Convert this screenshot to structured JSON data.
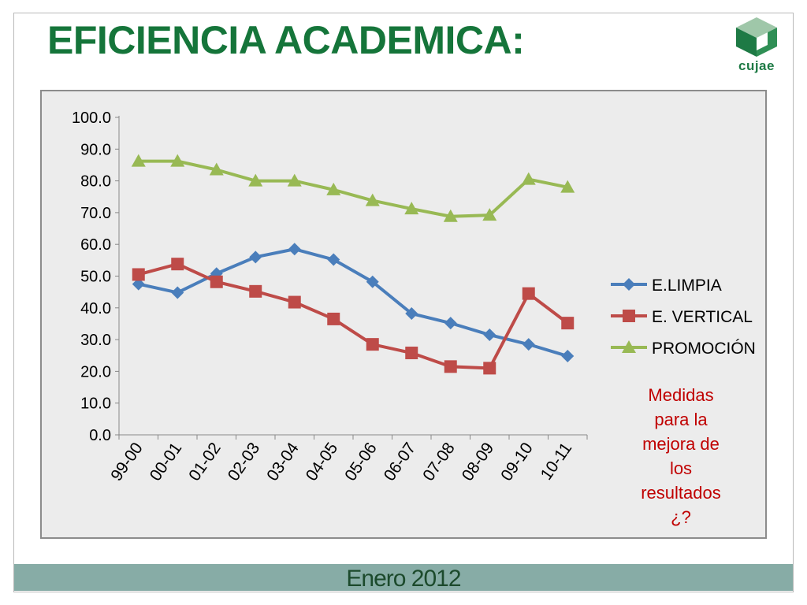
{
  "slide": {
    "title": "EFICIENCIA ACADEMICA:",
    "logo_text": "cujae",
    "note_lines": [
      "Medidas",
      "para la",
      "mejora de",
      "los",
      "resultados",
      "¿?"
    ],
    "footer": "Enero 2012"
  },
  "colors": {
    "title": "#15753a",
    "note": "#c00000",
    "footer_band": "#87aca6",
    "chart_bg": "#ececec"
  },
  "chart_data": {
    "type": "line",
    "title": "",
    "xlabel": "",
    "ylabel": "",
    "ylim": [
      0,
      100
    ],
    "yticks": [
      "100.0",
      "90.0",
      "80.0",
      "70.0",
      "60.0",
      "50.0",
      "40.0",
      "30.0",
      "20.0",
      "10.0",
      "0.0"
    ],
    "legend_position": "right",
    "grid": false,
    "categories": [
      "99-00",
      "00-01",
      "01-02",
      "02-03",
      "03-04",
      "04-05",
      "05-06",
      "06-07",
      "07-08",
      "08-09",
      "09-10",
      "10-11"
    ],
    "series": [
      {
        "name": "E.LIMPIA",
        "color": "#4a7ebb",
        "marker": "diamond",
        "values": [
          47.5,
          44.8,
          50.8,
          56.0,
          58.5,
          55.2,
          48.2,
          38.2,
          35.2,
          31.5,
          28.5,
          24.8
        ]
      },
      {
        "name": "E. VERTICAL",
        "color": "#be4b48",
        "marker": "square",
        "values": [
          50.5,
          53.8,
          48.2,
          45.2,
          41.8,
          36.5,
          28.5,
          25.8,
          21.5,
          21.0,
          44.5,
          35.2
        ]
      },
      {
        "name": "PROMOCIÓN",
        "color": "#98b954",
        "marker": "triangle",
        "values": [
          86.2,
          86.2,
          83.5,
          80.0,
          80.0,
          77.2,
          73.8,
          71.2,
          68.8,
          69.2,
          80.5,
          78.0
        ]
      }
    ]
  }
}
